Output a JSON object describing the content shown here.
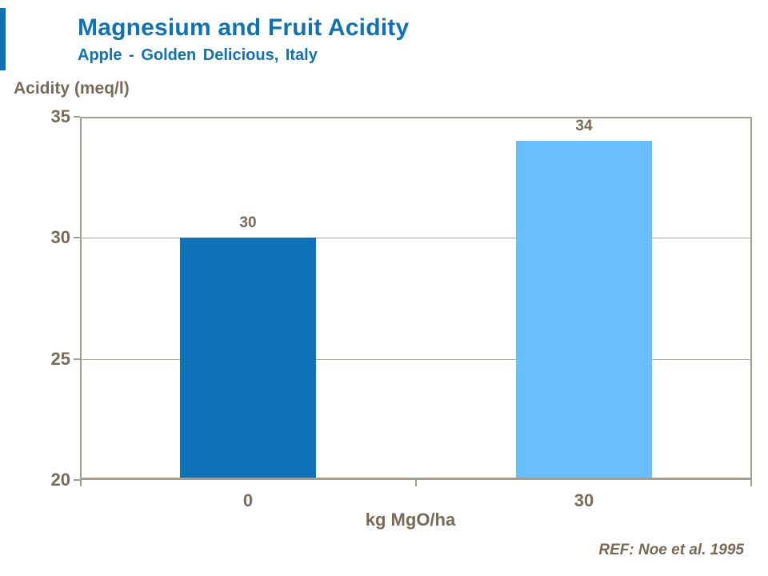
{
  "chart_data": {
    "type": "bar",
    "title": "Magnesium and Fruit Acidity",
    "subtitle": "Apple - Golden Delicious, Italy",
    "ylabel": "Acidity (meq/l)",
    "xlabel": "kg MgO/ha",
    "categories": [
      "0",
      "30"
    ],
    "values": [
      30,
      34
    ],
    "bar_labels": [
      "30",
      "34"
    ],
    "bar_colors": [
      "#0F72B8",
      "#69BFFB"
    ],
    "ylim": [
      20,
      35
    ],
    "yticks": [
      35,
      30,
      25,
      20
    ],
    "grid": true,
    "legend_position": "none",
    "reference": "REF: Noe et al. 1995"
  },
  "colors": {
    "title_blue": "#0E72B8",
    "text_brown": "#7A6A55",
    "axis_frame": "#A89C8E",
    "gridline": "#ABA092",
    "background": "#FFFFFF"
  }
}
